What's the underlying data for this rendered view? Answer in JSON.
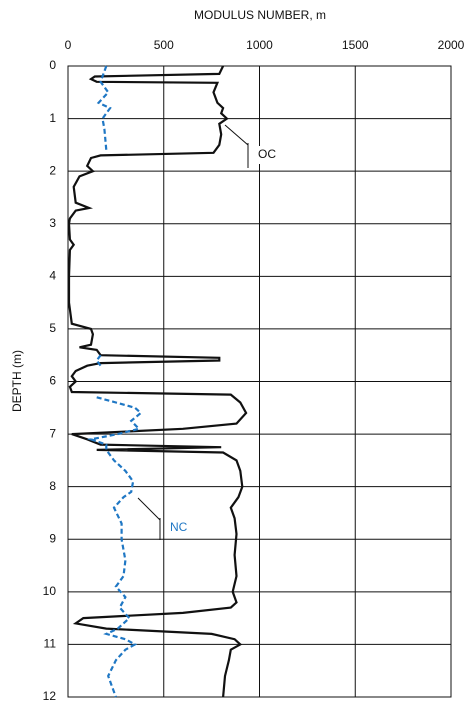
{
  "chart_data": {
    "type": "depth-profile",
    "x_label": "MODULUS NUMBER, m",
    "y_label": "DEPTH (m)",
    "xlim": [
      0,
      2000
    ],
    "xticks": [
      0,
      500,
      1000,
      1500,
      2000
    ],
    "ylim": [
      0,
      12
    ],
    "yticks": [
      0,
      1,
      2,
      3,
      4,
      5,
      6,
      7,
      8,
      9,
      10,
      11,
      12
    ],
    "y_inverted": true,
    "x_axis_top": true,
    "grid": true,
    "series": [
      {
        "color": "#111111",
        "dashed": false,
        "x": [
          810,
          790,
          140,
          120,
          150,
          780,
          760,
          780,
          810,
          800,
          830,
          790,
          800,
          790,
          760,
          170,
          120,
          100,
          130,
          60,
          30,
          40,
          110,
          40,
          10,
          5,
          10,
          30,
          10,
          5,
          5,
          20,
          120,
          130,
          120,
          60,
          150,
          170,
          790,
          790,
          170,
          100,
          40,
          20,
          40,
          10,
          20,
          850,
          900,
          930,
          880,
          600,
          20,
          100,
          170,
          800,
          150,
          810,
          880,
          900,
          910,
          890,
          850,
          870,
          880,
          870,
          880,
          860,
          880,
          850,
          600,
          80,
          40,
          200,
          750,
          870,
          900,
          850,
          840,
          820,
          810
        ],
        "y": [
          0,
          0.15,
          0.2,
          0.25,
          0.3,
          0.32,
          0.5,
          0.7,
          0.8,
          0.9,
          1.0,
          1.1,
          1.3,
          1.5,
          1.65,
          1.7,
          1.75,
          1.9,
          2.0,
          2.1,
          2.3,
          2.6,
          2.7,
          2.75,
          2.9,
          3.0,
          3.3,
          3.4,
          3.5,
          4.0,
          4.5,
          4.9,
          5.0,
          5.1,
          5.3,
          5.35,
          5.4,
          5.5,
          5.55,
          5.6,
          5.65,
          5.7,
          5.8,
          5.9,
          6.0,
          6.1,
          6.2,
          6.25,
          6.4,
          6.6,
          6.8,
          6.9,
          7.0,
          7.1,
          7.2,
          7.25,
          7.3,
          7.35,
          7.5,
          7.7,
          8.0,
          8.2,
          8.4,
          8.6,
          8.9,
          9.3,
          9.7,
          10.0,
          10.2,
          10.3,
          10.4,
          10.5,
          10.6,
          10.7,
          10.8,
          10.9,
          11.0,
          11.1,
          11.3,
          11.6,
          12.0
        ]
      },
      {
        "color": "#1f77c4",
        "dashed": true,
        "x": [
          200,
          170,
          210,
          160,
          220,
          200,
          180,
          190,
          200,
          null,
          170,
          150,
          170,
          null,
          150,
          250,
          350,
          380,
          330,
          370,
          260,
          120,
          200,
          200,
          240,
          300,
          340,
          330,
          290,
          240,
          280,
          280,
          300,
          290,
          250,
          300,
          270,
          320,
          260,
          200,
          300,
          350,
          300,
          250,
          210,
          230,
          250
        ],
        "y": [
          0,
          0.3,
          0.5,
          0.7,
          0.8,
          0.9,
          1.0,
          1.2,
          1.6,
          null,
          5.5,
          5.6,
          5.7,
          null,
          6.3,
          6.4,
          6.5,
          6.6,
          6.75,
          6.9,
          7.0,
          7.1,
          7.2,
          7.3,
          7.5,
          7.7,
          7.9,
          8.1,
          8.2,
          8.4,
          8.7,
          9.0,
          9.4,
          9.7,
          9.9,
          10.1,
          10.3,
          10.5,
          10.7,
          10.8,
          10.9,
          11.0,
          11.1,
          11.3,
          11.6,
          11.8,
          12.0
        ]
      }
    ],
    "annotations": [
      {
        "text": "OC",
        "color": "#111111"
      },
      {
        "text": "NC",
        "color": "#1f77c4"
      }
    ]
  }
}
